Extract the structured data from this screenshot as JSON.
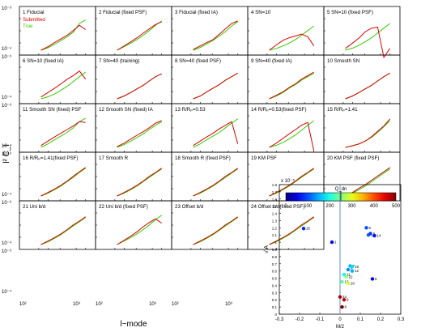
{
  "chart_data": [
    {
      "type": "line",
      "ylabel": "l² C_l",
      "xlabel": "l−mode",
      "x": [
        220,
        300,
        400,
        520,
        680,
        880,
        1150,
        1500
      ],
      "xscale": "log",
      "yscale": "log",
      "xlim": [
        100,
        2000
      ],
      "ylim": [
        0.0005,
        0.001
      ],
      "x_ticks": [
        "10²",
        "10³"
      ],
      "y_ticks": [
        "10⁻³",
        "10⁻⁴"
      ],
      "legend": [
        "Submitted",
        "True"
      ],
      "colors": {
        "submitted": "#dd0000",
        "true": "#33cc00"
      },
      "panels": [
        {
          "label": "1 Fiducial",
          "red": [
            0.0,
            0.1,
            0.22,
            0.32,
            0.42,
            0.55,
            0.7,
            0.58
          ],
          "green": [
            0.0,
            0.07,
            0.17,
            0.27,
            0.38,
            0.5,
            0.75,
            0.85
          ]
        },
        {
          "label": "2 Fiducial (fixed PSF)",
          "red": [
            0.0,
            0.12,
            0.24,
            0.35,
            0.48,
            0.6,
            0.72,
            0.8
          ],
          "green": [
            0.0,
            0.1,
            0.2,
            0.3,
            0.42,
            0.55,
            0.7,
            0.82
          ]
        },
        {
          "label": "3 Fiducial (fixed IA)",
          "red": [
            0.02,
            0.12,
            0.22,
            0.3,
            0.45,
            0.6,
            0.75,
            0.82
          ],
          "green": [
            0.0,
            0.08,
            0.18,
            0.28,
            0.4,
            0.52,
            0.68,
            0.8
          ]
        },
        {
          "label": "4 SN=10",
          "red": [
            0.0,
            0.15,
            0.28,
            0.35,
            0.4,
            0.45,
            0.38,
            0.12
          ],
          "green": [
            0.0,
            0.05,
            0.12,
            0.2,
            0.3,
            0.42,
            0.55,
            0.68
          ]
        },
        {
          "label": "5 SN=10 (fixed PSF)",
          "red": [
            0.05,
            0.2,
            0.35,
            0.52,
            0.62,
            0.65,
            -0.2,
            0.05
          ],
          "green": [
            0.0,
            0.06,
            0.14,
            0.24,
            0.35,
            0.48,
            0.62,
            0.75
          ]
        },
        {
          "label": "6 SN=10 (fixed IA)",
          "red": [
            0.05,
            0.18,
            0.3,
            0.42,
            0.55,
            0.65,
            0.78,
            0.55
          ],
          "green": [
            0.0,
            0.06,
            0.14,
            0.24,
            0.35,
            0.48,
            0.62,
            0.75
          ]
        },
        {
          "label": "7 SN=40 (training)",
          "red": [
            0.0,
            0.08,
            0.18,
            0.28,
            0.38,
            0.5,
            0.62,
            0.7
          ],
          "green": [
            0.0,
            0.08,
            0.18,
            0.28,
            0.38,
            0.5,
            0.62,
            0.7
          ]
        },
        {
          "label": "8 SN=40 (fixed PSF)",
          "red": [
            0.0,
            0.08,
            0.2,
            0.3,
            0.4,
            0.52,
            0.62,
            0.72
          ],
          "green": [
            0.0,
            0.08,
            0.2,
            0.3,
            0.4,
            0.52,
            0.62,
            0.72
          ]
        },
        {
          "label": "9 SN=40 (fixed IA)",
          "red": [
            0.0,
            0.1,
            0.2,
            0.32,
            0.42,
            0.55,
            0.65,
            0.75
          ],
          "green": [
            0.0,
            0.08,
            0.18,
            0.3,
            0.4,
            0.52,
            0.62,
            0.72
          ]
        },
        {
          "label": "10 Smooth SN",
          "red": [
            0.0,
            0.08,
            0.18,
            0.28,
            0.38,
            0.5,
            0.62,
            0.72
          ],
          "green": [
            0.0,
            0.08,
            0.18,
            0.28,
            0.38,
            0.5,
            0.62,
            0.72
          ]
        },
        {
          "label": "11 Smooth SN (fixed) PSF",
          "red": [
            0.05,
            0.18,
            0.3,
            0.4,
            0.5,
            0.6,
            0.72,
            0.7
          ],
          "green": [
            0.0,
            0.1,
            0.22,
            0.32,
            0.42,
            0.55,
            0.72,
            0.82
          ]
        },
        {
          "label": "12 Smooth SN (fixed) IA",
          "red": [
            0.02,
            0.12,
            0.24,
            0.34,
            0.44,
            0.55,
            0.68,
            0.75
          ],
          "green": [
            0.0,
            0.08,
            0.18,
            0.28,
            0.38,
            0.5,
            0.62,
            0.72
          ]
        },
        {
          "label": "13 R/Rₚ=0.53",
          "red": [
            0.05,
            0.18,
            0.3,
            0.4,
            0.52,
            0.62,
            0.72,
            0.1
          ],
          "green": [
            0.0,
            0.1,
            0.22,
            0.32,
            0.42,
            0.55,
            0.68,
            0.8
          ]
        },
        {
          "label": "14 R/Rₚ=0.53(fixed PSF)",
          "red": [
            0.0,
            0.12,
            0.26,
            0.38,
            0.5,
            0.62,
            0.7,
            -0.1
          ],
          "green": [
            0.0,
            0.06,
            0.14,
            0.24,
            0.35,
            0.48,
            0.62,
            0.75
          ]
        },
        {
          "label": "15 R/Rₚ=1.41",
          "red": [
            0.0,
            0.05,
            0.1,
            0.18,
            0.3,
            0.45,
            0.6,
            0.8
          ],
          "green": [
            0.0,
            0.04,
            0.1,
            0.18,
            0.28,
            0.42,
            0.58,
            0.75
          ]
        },
        {
          "label": "16 R/Rₚ=1.41(fixed PSF)",
          "red": [
            0.0,
            0.1,
            0.2,
            0.3,
            0.42,
            0.55,
            0.68,
            0.8
          ],
          "green": [
            0.0,
            0.08,
            0.18,
            0.28,
            0.4,
            0.52,
            0.66,
            0.78
          ]
        },
        {
          "label": "17 Smooth R",
          "red": [
            0.0,
            0.1,
            0.2,
            0.3,
            0.42,
            0.55,
            0.66,
            0.78
          ],
          "green": [
            0.0,
            0.08,
            0.18,
            0.28,
            0.4,
            0.52,
            0.64,
            0.76
          ]
        },
        {
          "label": "18 Smooth R (fixed PSF)",
          "red": [
            0.0,
            0.1,
            0.2,
            0.3,
            0.42,
            0.55,
            0.66,
            0.78
          ],
          "green": [
            0.0,
            0.08,
            0.18,
            0.28,
            0.4,
            0.52,
            0.64,
            0.76
          ]
        },
        {
          "label": "19 KM PSF",
          "red": [
            0.0,
            0.1,
            0.2,
            0.3,
            0.42,
            0.55,
            0.66,
            0.78
          ],
          "green": [
            0.0,
            0.08,
            0.18,
            0.28,
            0.4,
            0.52,
            0.64,
            0.76
          ]
        },
        {
          "label": "20 KM PSF (fixed PSF)",
          "red": [
            0.0,
            0.1,
            0.22,
            0.32,
            0.44,
            0.56,
            0.68,
            0.8
          ],
          "green": [
            0.0,
            0.08,
            0.18,
            0.28,
            0.4,
            0.52,
            0.64,
            0.76
          ]
        },
        {
          "label": "21 Uni b/d",
          "red": [
            0.0,
            0.1,
            0.2,
            0.3,
            0.42,
            0.55,
            0.66,
            0.78
          ],
          "green": [
            0.0,
            0.08,
            0.18,
            0.28,
            0.4,
            0.52,
            0.64,
            0.76
          ]
        },
        {
          "label": "22 Uni b/d (fixed PSF)",
          "red": [
            0.0,
            0.12,
            0.24,
            0.36,
            0.5,
            0.62,
            0.72,
            0.6
          ],
          "green": [
            0.0,
            0.1,
            0.2,
            0.3,
            0.42,
            0.55,
            0.7,
            0.82
          ]
        },
        {
          "label": "23 Offset b/d",
          "red": [
            0.0,
            0.1,
            0.2,
            0.3,
            0.42,
            0.55,
            0.66,
            0.78
          ],
          "green": [
            0.0,
            0.08,
            0.18,
            0.28,
            0.4,
            0.52,
            0.64,
            0.76
          ]
        },
        {
          "label": "24 Offset b/d(fixed PSF)",
          "red": [
            0.0,
            0.1,
            0.2,
            0.3,
            0.42,
            0.55,
            0.66,
            0.78
          ],
          "green": [
            0.0,
            0.08,
            0.18,
            0.28,
            0.4,
            0.52,
            0.64,
            0.76
          ]
        }
      ]
    },
    {
      "type": "scatter",
      "xlabel": "M/2",
      "ylabel": "√ A",
      "xlim": [
        -0.3,
        0.3
      ],
      "ylim": [
        0,
        1.8
      ],
      "x_ticks": [
        -0.3,
        -0.2,
        -0.1,
        0,
        0.1,
        0.2,
        0.3
      ],
      "y_ticks": [
        0,
        0.1,
        0.2,
        0.3,
        0.4,
        0.5,
        0.6,
        0.7,
        0.8,
        0.9,
        1,
        1.1,
        1.2,
        1.3,
        1.4,
        1.5,
        1.6,
        1.7,
        1.8
      ],
      "y_exponent": "x 10⁻⁵",
      "colorbar": {
        "label": "Q_dn",
        "ticks": [
          0,
          100,
          200,
          300,
          400,
          500
        ],
        "marker": 250
      },
      "vline_x": 0.0,
      "points": [
        {
          "label": "15",
          "x": -0.18,
          "y": 1.19,
          "q": 80
        },
        {
          "label": "1",
          "x": -0.04,
          "y": 1.0,
          "q": 60
        },
        {
          "label": "5",
          "x": 0.13,
          "y": 1.2,
          "q": 100
        },
        {
          "label": "16",
          "x": 0.14,
          "y": 1.1,
          "q": 110
        },
        {
          "label": "2",
          "x": 0.15,
          "y": 1.12,
          "q": 90
        },
        {
          "label": "14",
          "x": 0.17,
          "y": 1.09,
          "q": 70
        },
        {
          "label": "6",
          "x": 0.16,
          "y": 0.49,
          "q": 60
        },
        {
          "label": "7",
          "x": 0.05,
          "y": 0.67,
          "q": 150
        },
        {
          "label": "18",
          "x": 0.06,
          "y": 0.66,
          "q": 170
        },
        {
          "label": "3",
          "x": 0.04,
          "y": 0.62,
          "q": 130
        },
        {
          "label": "12",
          "x": 0.06,
          "y": 0.6,
          "q": 150
        },
        {
          "label": "11",
          "x": 0.02,
          "y": 0.55,
          "q": 190
        },
        {
          "label": "22",
          "x": 0.03,
          "y": 0.52,
          "q": 260
        },
        {
          "label": "13",
          "x": 0.01,
          "y": 0.45,
          "q": 230
        },
        {
          "label": "20",
          "x": 0.04,
          "y": 0.43,
          "q": 290
        },
        {
          "label": "24",
          "x": 0.0,
          "y": 0.24,
          "q": 480
        },
        {
          "label": "9",
          "x": 0.02,
          "y": 0.2,
          "q": 470
        },
        {
          "label": "8",
          "x": 0.01,
          "y": 0.1,
          "q": 500
        }
      ]
    }
  ]
}
